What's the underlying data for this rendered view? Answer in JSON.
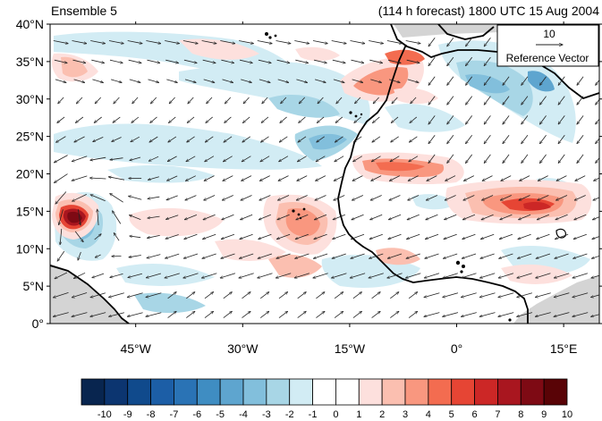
{
  "title_left": "Ensemble 5",
  "title_right": "(114 h forecast) 1800 UTC 15 Aug 2004",
  "reference_vector": {
    "magnitude": "10",
    "label": "Reference Vector"
  },
  "map": {
    "lon_range": [
      -57,
      20
    ],
    "lat_range": [
      0,
      40
    ],
    "lat_ticks": [
      {
        "lat": 40,
        "label": "40°N"
      },
      {
        "lat": 35,
        "label": "35°N"
      },
      {
        "lat": 30,
        "label": "30°N"
      },
      {
        "lat": 25,
        "label": "25°N"
      },
      {
        "lat": 20,
        "label": "20°N"
      },
      {
        "lat": 15,
        "label": "15°N"
      },
      {
        "lat": 10,
        "label": "10°N"
      },
      {
        "lat": 5,
        "label": "5°N"
      },
      {
        "lat": 0,
        "label": "0°"
      }
    ],
    "lon_ticks": [
      {
        "lon": -45,
        "label": "45°W"
      },
      {
        "lon": -30,
        "label": "30°W"
      },
      {
        "lon": -15,
        "label": "15°W"
      },
      {
        "lon": 0,
        "label": "0°"
      },
      {
        "lon": 15,
        "label": "15°E"
      }
    ],
    "colors": {
      "land_missing": "#d4d4d4",
      "coastline": "#000000"
    }
  },
  "colorbar": {
    "labels": [
      "-10",
      "-9",
      "-8",
      "-7",
      "-6",
      "-5",
      "-4",
      "-3",
      "-2",
      "-1",
      "0",
      "1",
      "2",
      "3",
      "4",
      "5",
      "6",
      "7",
      "8",
      "9",
      "10"
    ],
    "colors": [
      "#08254f",
      "#0c3570",
      "#104a8c",
      "#1c5ea6",
      "#2a73b5",
      "#3f8dc2",
      "#5ea5cf",
      "#82bfdc",
      "#a8d6e6",
      "#d2ecf4",
      "#ffffff",
      "#ffffff",
      "#fde0dd",
      "#fbbfb0",
      "#f9977f",
      "#f36c50",
      "#e64534",
      "#cc2726",
      "#a9161f",
      "#7e0a14",
      "#590306"
    ]
  }
}
